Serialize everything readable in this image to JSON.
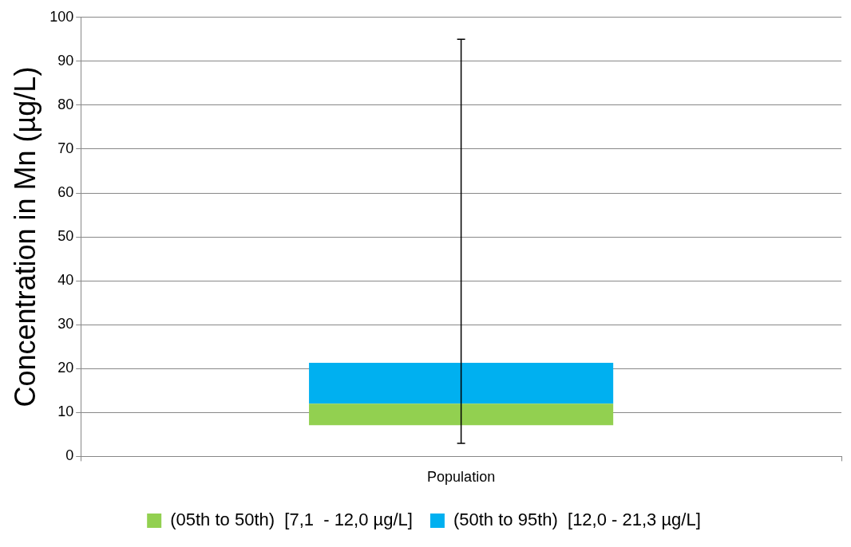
{
  "chart_data": {
    "type": "bar",
    "ylabel": "Concentration in Mn (µg/L)",
    "categories": [
      "Population"
    ],
    "series": [
      {
        "name": "(05th to 50th)  [7,1  - 12,0 µg/L]",
        "color": "#92d050",
        "base": [
          7.1
        ],
        "values": [
          4.9
        ]
      },
      {
        "name": "(50th to 95th)  [12,0 - 21,3 µg/L]",
        "color": "#00b0f0",
        "base": [
          12.0
        ],
        "values": [
          9.3
        ],
        "errors": [
          [
            3,
            95
          ]
        ]
      }
    ],
    "ylim": [
      0,
      100
    ],
    "yticks": [
      0,
      10,
      20,
      30,
      40,
      50,
      60,
      70,
      80,
      90,
      100
    ],
    "grid": "y",
    "legend": "bottom"
  }
}
